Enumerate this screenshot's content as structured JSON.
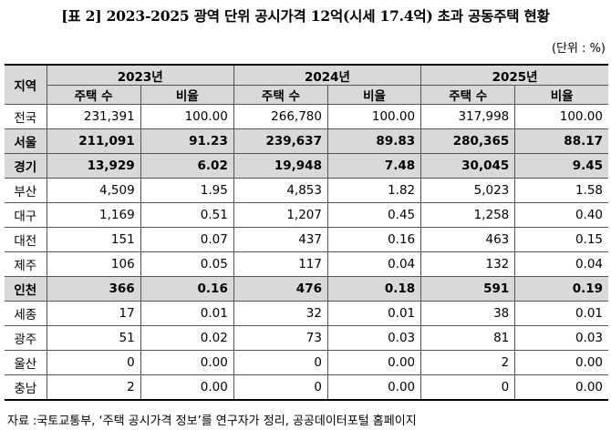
{
  "title": "[표 2] 2023-2025 광역 단위 공시가격 12억(시세 17.4억) 초과 공동주택 현황",
  "unit": "(단위 : %)",
  "table": {
    "region_header": "지역",
    "years": [
      "2023년",
      "2024년",
      "2025년"
    ],
    "sub_headers": {
      "count": "주택 수",
      "ratio": "비율"
    },
    "rows": [
      {
        "region": "전국",
        "highlight": false,
        "cells": [
          "231,391",
          "100.00",
          "266,780",
          "100.00",
          "317,998",
          "100.00"
        ]
      },
      {
        "region": "서울",
        "highlight": true,
        "cells": [
          "211,091",
          "91.23",
          "239,637",
          "89.83",
          "280,365",
          "88.17"
        ]
      },
      {
        "region": "경기",
        "highlight": true,
        "cells": [
          "13,929",
          "6.02",
          "19,948",
          "7.48",
          "30,045",
          "9.45"
        ]
      },
      {
        "region": "부산",
        "highlight": false,
        "cells": [
          "4,509",
          "1.95",
          "4,853",
          "1.82",
          "5,023",
          "1.58"
        ]
      },
      {
        "region": "대구",
        "highlight": false,
        "cells": [
          "1,169",
          "0.51",
          "1,207",
          "0.45",
          "1,258",
          "0.40"
        ]
      },
      {
        "region": "대전",
        "highlight": false,
        "cells": [
          "151",
          "0.07",
          "437",
          "0.16",
          "463",
          "0.15"
        ]
      },
      {
        "region": "제주",
        "highlight": false,
        "cells": [
          "106",
          "0.05",
          "117",
          "0.04",
          "132",
          "0.04"
        ]
      },
      {
        "region": "인천",
        "highlight": true,
        "cells": [
          "366",
          "0.16",
          "476",
          "0.18",
          "591",
          "0.19"
        ]
      },
      {
        "region": "세종",
        "highlight": false,
        "cells": [
          "17",
          "0.01",
          "32",
          "0.01",
          "38",
          "0.01"
        ]
      },
      {
        "region": "광주",
        "highlight": false,
        "cells": [
          "51",
          "0.02",
          "73",
          "0.03",
          "81",
          "0.03"
        ]
      },
      {
        "region": "울산",
        "highlight": false,
        "cells": [
          "0",
          "0.00",
          "0",
          "0.00",
          "2",
          "0.00"
        ]
      },
      {
        "region": "충남",
        "highlight": false,
        "cells": [
          "2",
          "0.00",
          "0",
          "0.00",
          "0",
          "0.00"
        ]
      }
    ]
  },
  "source": "자료 :국토교통부, ‘주택 공시가격 정보’를 연구자가 정리, 공공데이터포털 홈페이지"
}
